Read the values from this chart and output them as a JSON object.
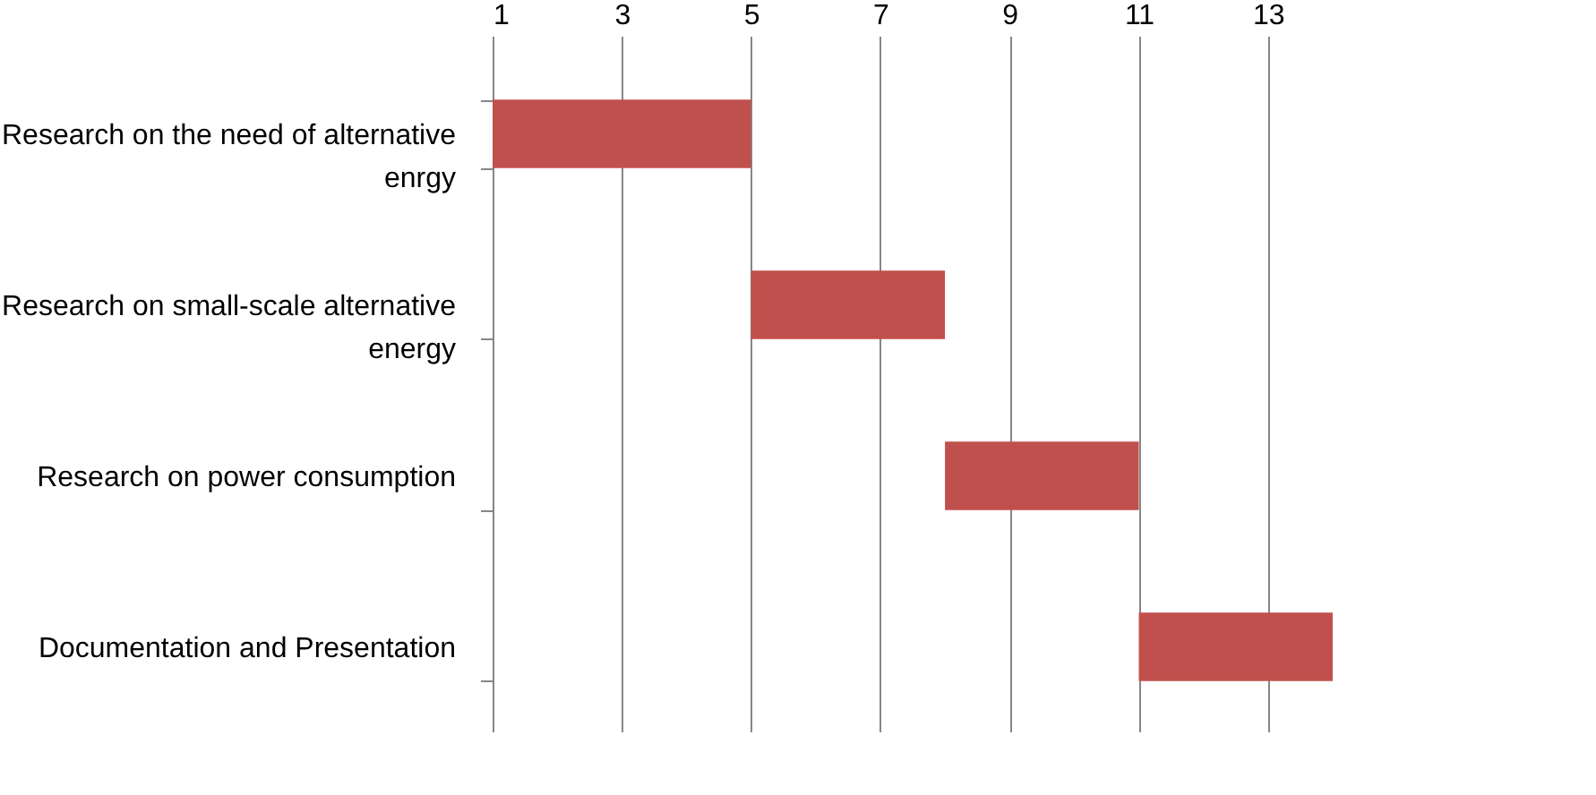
{
  "chart_data": {
    "type": "bar",
    "orientation": "horizontal",
    "categories": [
      "Research on the need of alternative enrgy",
      "Research on small-scale alternative energy",
      "Research on power consumption",
      "Documentation and Presentation"
    ],
    "base": [
      1,
      5,
      8,
      11
    ],
    "values": [
      4,
      3,
      3,
      3
    ],
    "color": "#c0504d",
    "xlim": [
      1,
      14
    ],
    "xticks": [
      1,
      3,
      5,
      7,
      9,
      11,
      13
    ],
    "grid": "x"
  }
}
